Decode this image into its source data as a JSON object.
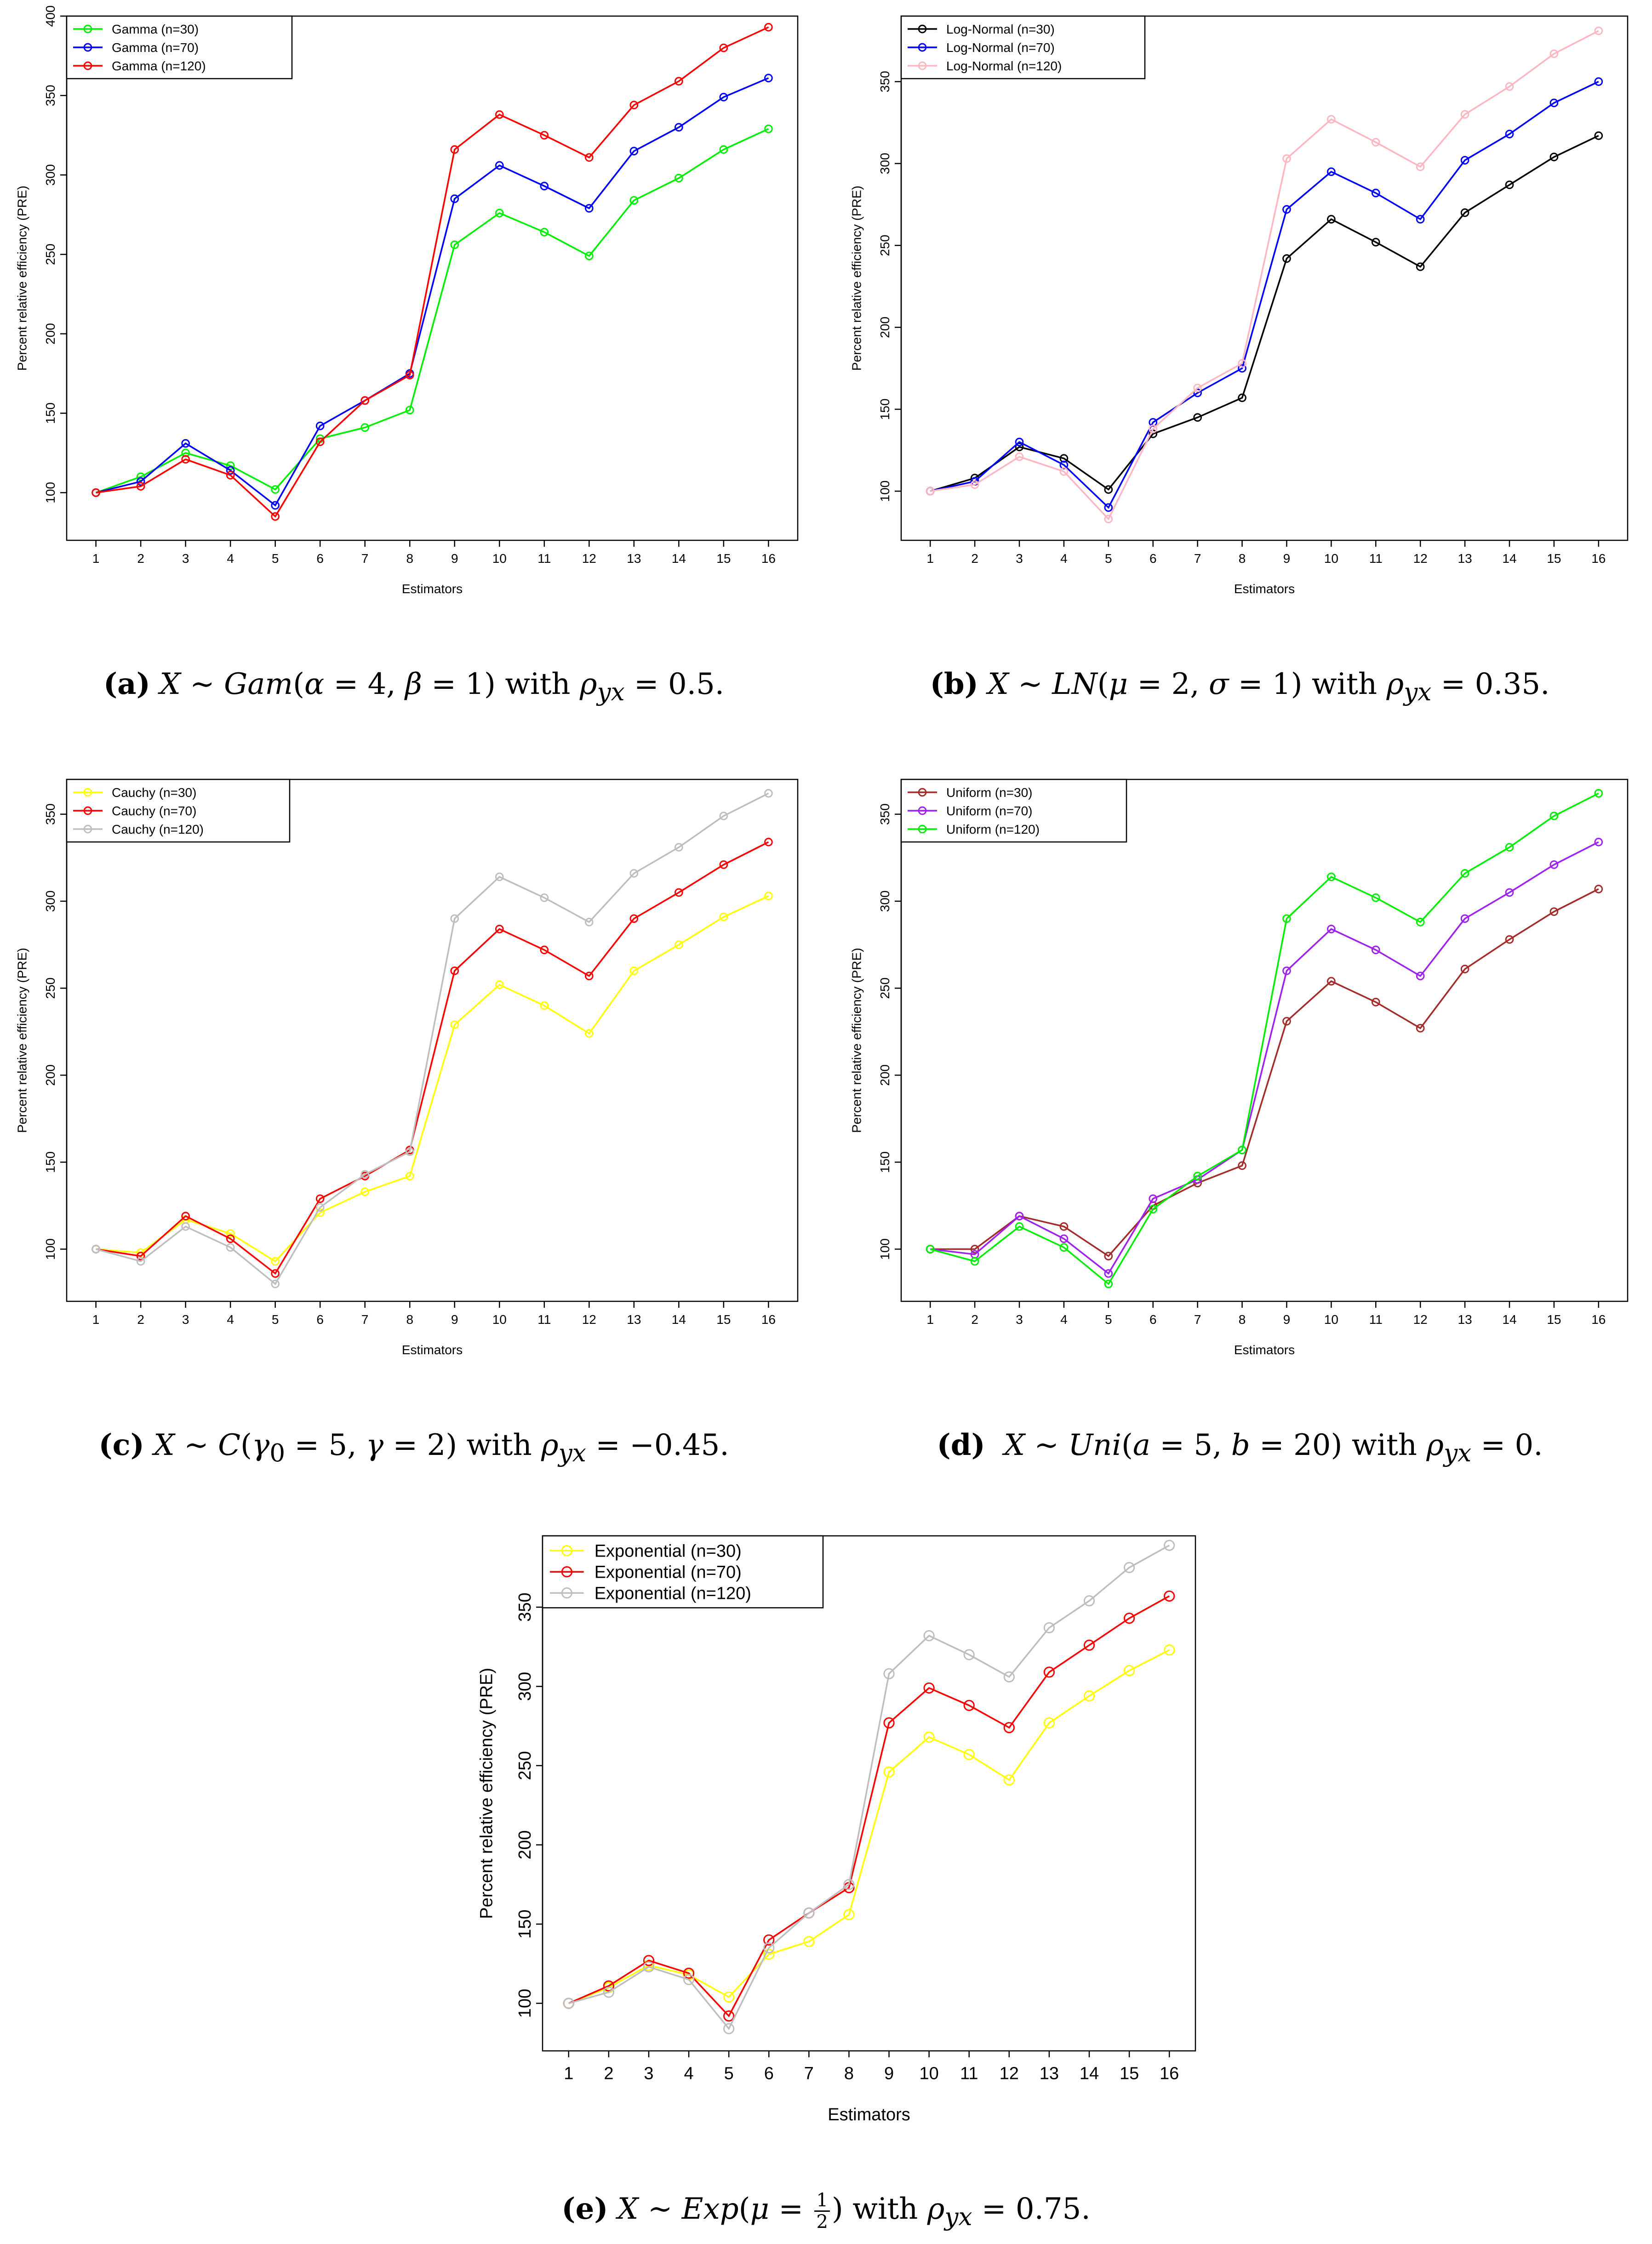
{
  "xlabel": "Estimators",
  "ylabel": "Percent relative efficiency (PRE)",
  "chart_data": [
    {
      "id": "a",
      "type": "line",
      "x": [
        1,
        2,
        3,
        4,
        5,
        6,
        7,
        8,
        9,
        10,
        11,
        12,
        13,
        14,
        15,
        16
      ],
      "ylim": [
        70,
        400
      ],
      "yticks": [
        100,
        150,
        200,
        250,
        300,
        350,
        400
      ],
      "xlabel": "Estimators",
      "ylabel": "Percent relative efficiency (PRE)",
      "legend": "top-left",
      "series": [
        {
          "name": "Gamma (n=30)",
          "color": "#00ee00",
          "values": [
            100,
            110,
            125,
            117,
            102,
            134,
            141,
            152,
            256,
            276,
            264,
            249,
            284,
            298,
            316,
            329
          ]
        },
        {
          "name": "Gamma (n=70)",
          "color": "#0000ff",
          "values": [
            100,
            107,
            131,
            114,
            92,
            142,
            158,
            175,
            285,
            306,
            293,
            279,
            315,
            330,
            349,
            361
          ]
        },
        {
          "name": "Gamma (n=120)",
          "color": "#ff0000",
          "values": [
            100,
            104,
            121,
            111,
            85,
            132,
            158,
            174,
            316,
            338,
            325,
            311,
            344,
            359,
            380,
            393
          ]
        }
      ],
      "caption": {
        "tag": "(a)",
        "text": "X ∼ Gam(α = 4, β = 1) with ρyx = 0.5."
      }
    },
    {
      "id": "b",
      "type": "line",
      "x": [
        1,
        2,
        3,
        4,
        5,
        6,
        7,
        8,
        9,
        10,
        11,
        12,
        13,
        14,
        15,
        16
      ],
      "ylim": [
        70,
        390
      ],
      "yticks": [
        100,
        150,
        200,
        250,
        300,
        350
      ],
      "xlabel": "Estimators",
      "ylabel": "Percent relative efficiency (PRE)",
      "legend": "top-left",
      "series": [
        {
          "name": "Log-Normal (n=30)",
          "color": "#000000",
          "values": [
            100,
            108,
            127,
            120,
            101,
            135,
            145,
            157,
            242,
            266,
            252,
            237,
            270,
            287,
            304,
            317
          ]
        },
        {
          "name": "Log-Normal (n=70)",
          "color": "#0000ff",
          "values": [
            100,
            106,
            130,
            116,
            90,
            142,
            160,
            175,
            272,
            295,
            282,
            266,
            302,
            318,
            337,
            350
          ]
        },
        {
          "name": "Log-Normal (n=120)",
          "color": "#ffb6c1",
          "values": [
            100,
            104,
            121,
            112,
            83,
            138,
            163,
            178,
            303,
            327,
            313,
            298,
            330,
            347,
            367,
            381
          ]
        }
      ],
      "caption": {
        "tag": "(b)",
        "text": "X ∼ LN(μ = 2, σ = 1) with ρyx = 0.35."
      }
    },
    {
      "id": "c",
      "type": "line",
      "x": [
        1,
        2,
        3,
        4,
        5,
        6,
        7,
        8,
        9,
        10,
        11,
        12,
        13,
        14,
        15,
        16
      ],
      "ylim": [
        70,
        370
      ],
      "yticks": [
        100,
        150,
        200,
        250,
        300,
        350
      ],
      "xlabel": "Estimators",
      "ylabel": "Percent relative efficiency (PRE)",
      "legend": "top-left",
      "series": [
        {
          "name": "Cauchy (n=30)",
          "color": "#ffff00",
          "values": [
            100,
            98,
            117,
            109,
            93,
            121,
            133,
            142,
            229,
            252,
            240,
            224,
            260,
            275,
            291,
            303
          ]
        },
        {
          "name": "Cauchy (n=70)",
          "color": "#ff0000",
          "values": [
            100,
            96,
            119,
            106,
            86,
            129,
            142,
            157,
            260,
            284,
            272,
            257,
            290,
            305,
            321,
            334
          ]
        },
        {
          "name": "Cauchy (n=120)",
          "color": "#bebebe",
          "values": [
            100,
            93,
            113,
            101,
            80,
            124,
            143,
            156,
            290,
            314,
            302,
            288,
            316,
            331,
            349,
            362
          ]
        }
      ],
      "caption": {
        "tag": "(c)",
        "text": "X ∼ C(γ0 = 5, γ = 2) with ρyx = −0.45."
      }
    },
    {
      "id": "d",
      "type": "line",
      "x": [
        1,
        2,
        3,
        4,
        5,
        6,
        7,
        8,
        9,
        10,
        11,
        12,
        13,
        14,
        15,
        16
      ],
      "ylim": [
        70,
        370
      ],
      "yticks": [
        100,
        150,
        200,
        250,
        300,
        350
      ],
      "xlabel": "Estimators",
      "ylabel": "Percent relative efficiency (PRE)",
      "legend": "top-left",
      "series": [
        {
          "name": "Uniform (n=30)",
          "color": "#a52a2a",
          "values": [
            100,
            100,
            119,
            113,
            96,
            125,
            138,
            148,
            231,
            254,
            242,
            227,
            261,
            278,
            294,
            307
          ]
        },
        {
          "name": "Uniform (n=70)",
          "color": "#a020f0",
          "values": [
            100,
            97,
            119,
            106,
            86,
            129,
            140,
            157,
            260,
            284,
            272,
            257,
            290,
            305,
            321,
            334
          ]
        },
        {
          "name": "Uniform (n=120)",
          "color": "#00ee00",
          "values": [
            100,
            93,
            113,
            101,
            80,
            123,
            142,
            157,
            290,
            314,
            302,
            288,
            316,
            331,
            349,
            362
          ]
        }
      ],
      "caption": {
        "tag": "(d)",
        "text": "X ∼ Uni(a = 5, b = 20) with ρyx = 0."
      }
    },
    {
      "id": "e",
      "type": "line",
      "x": [
        1,
        2,
        3,
        4,
        5,
        6,
        7,
        8,
        9,
        10,
        11,
        12,
        13,
        14,
        15,
        16
      ],
      "ylim": [
        70,
        395
      ],
      "yticks": [
        100,
        150,
        200,
        250,
        300,
        350
      ],
      "xlabel": "Estimators",
      "ylabel": "Percent relative efficiency (PRE)",
      "legend": "top-left",
      "series": [
        {
          "name": "Exponential (n=30)",
          "color": "#ffff00",
          "values": [
            100,
            110,
            124,
            118,
            104,
            131,
            139,
            156,
            246,
            268,
            257,
            241,
            277,
            294,
            310,
            323
          ]
        },
        {
          "name": "Exponential (n=70)",
          "color": "#ff0000",
          "values": [
            100,
            111,
            127,
            119,
            92,
            140,
            157,
            173,
            277,
            299,
            288,
            274,
            309,
            326,
            343,
            357
          ]
        },
        {
          "name": "Exponential (n=120)",
          "color": "#bebebe",
          "values": [
            100,
            107,
            123,
            115,
            84,
            135,
            157,
            175,
            308,
            332,
            320,
            306,
            337,
            354,
            375,
            389
          ]
        }
      ],
      "caption": {
        "tag": "(e)",
        "text": "X ∼ Exp(μ = 1/2) with ρyx = 0.75."
      }
    }
  ]
}
